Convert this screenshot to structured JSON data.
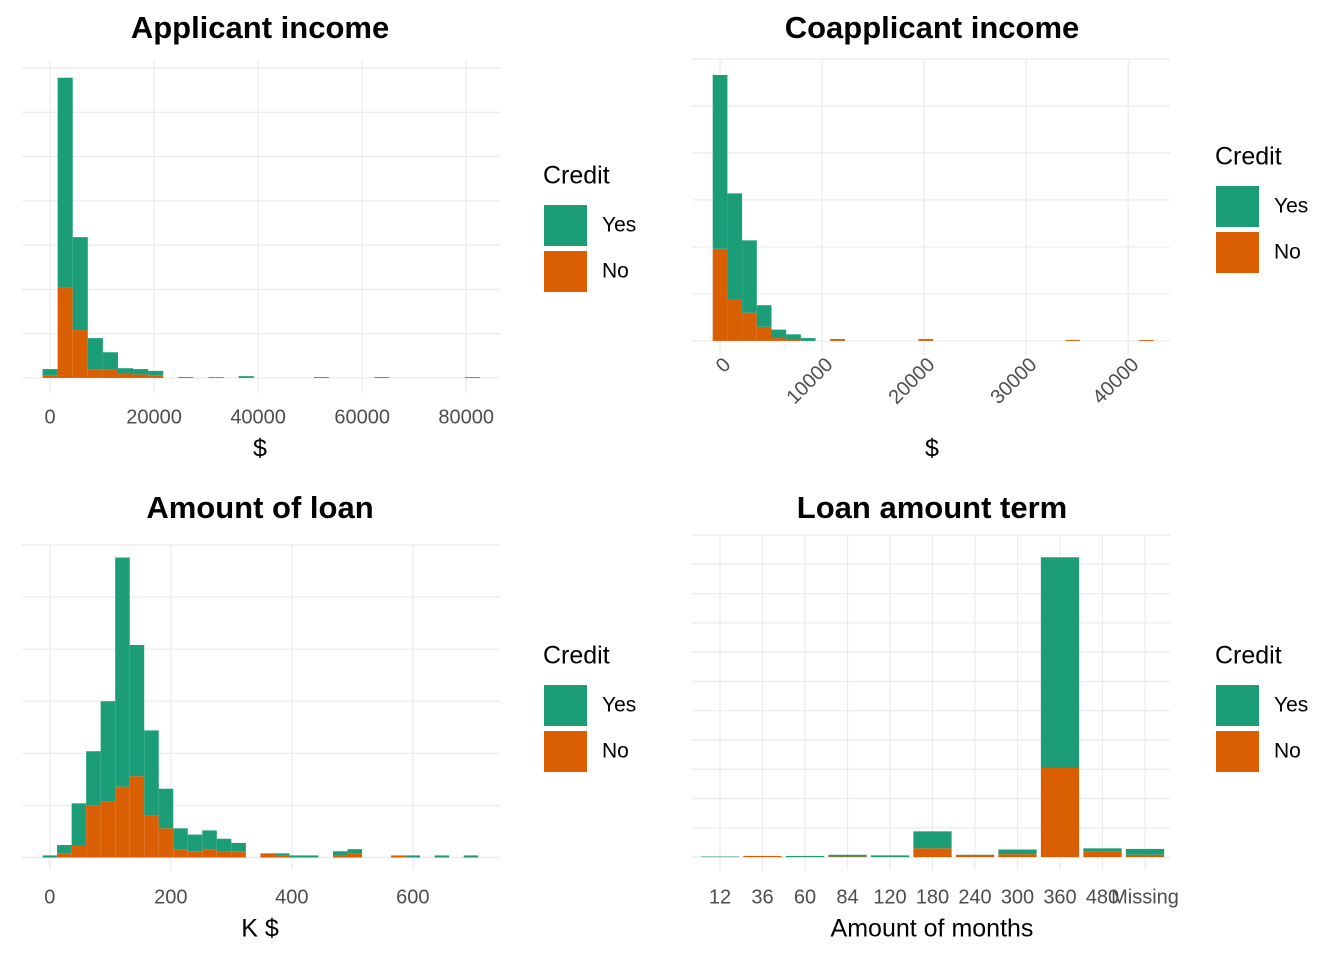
{
  "chart_data": [
    {
      "type": "histogram",
      "title": "Applicant income",
      "x_label": "$",
      "legend_title": "Credit",
      "bins": [
        -1450,
        1450,
        4350,
        7250,
        10150,
        13050,
        15950,
        18850,
        21750,
        24650,
        27550,
        30450,
        33350,
        36250,
        39150,
        42050,
        44950,
        47850,
        50750,
        53650,
        56550,
        59450,
        62350,
        65250,
        68150,
        71050,
        73950,
        76850,
        79750,
        82650
      ],
      "series": [
        {
          "name": "Yes",
          "color": "#1b9e77",
          "values": [
            7,
            237,
            105,
            35,
            19,
            6,
            6,
            5,
            0,
            1,
            0,
            0,
            0,
            2,
            0,
            0,
            0,
            0,
            1,
            0,
            0,
            0,
            1,
            0,
            0,
            0,
            0,
            0,
            0
          ]
        },
        {
          "name": "No",
          "color": "#d95f02",
          "values": [
            3,
            102,
            54,
            10,
            10,
            5,
            4,
            3,
            0,
            0,
            0,
            1,
            0,
            0,
            0,
            0,
            0,
            0,
            0,
            0,
            0,
            0,
            0,
            0,
            0,
            0,
            0,
            0,
            1
          ]
        }
      ],
      "xlim": [
        -5400,
        86500
      ],
      "xticks": [
        0,
        20000,
        40000,
        60000,
        80000
      ],
      "ylim": [
        -17,
        359
      ],
      "yticks": [
        0,
        50,
        100,
        150,
        200,
        250,
        300,
        350
      ],
      "grid": true
    },
    {
      "type": "histogram",
      "title": "Coapplicant income",
      "x_label": "$",
      "legend_title": "Credit",
      "bins": [
        -720,
        720,
        2160,
        3600,
        5040,
        6480,
        7920,
        9360,
        10800,
        12240,
        13680,
        15120,
        16560,
        18000,
        19440,
        20880,
        22320,
        23760,
        25200,
        26640,
        28080,
        29520,
        30960,
        32400,
        33840,
        35280,
        36720,
        38160,
        39600,
        41040,
        42480
      ],
      "series": [
        {
          "name": "Yes",
          "color": "#1b9e77",
          "values": [
            185,
            113,
            77,
            23,
            9,
            6,
            3,
            0,
            0,
            0,
            0,
            0,
            0,
            0,
            1,
            0,
            0,
            0,
            0,
            0,
            0,
            0,
            0,
            0,
            0,
            0,
            0,
            0,
            0,
            0
          ]
        },
        {
          "name": "No",
          "color": "#d95f02",
          "values": [
            98,
            44,
            30,
            15,
            3,
            1,
            0,
            0,
            2,
            0,
            0,
            0,
            0,
            0,
            1,
            0,
            0,
            0,
            0,
            0,
            0,
            0,
            0,
            0,
            1,
            0,
            0,
            0,
            0,
            1
          ]
        }
      ],
      "xlim": [
        -2750,
        44100
      ],
      "xticks": [
        0,
        10000,
        20000,
        30000,
        40000
      ],
      "xtick_rotation": 45,
      "ylim": [
        -15,
        300
      ],
      "yticks": [
        0,
        50,
        100,
        150,
        200,
        250,
        300
      ],
      "grid": true
    },
    {
      "type": "histogram",
      "title": "Amount of loan",
      "x_label": "K $",
      "legend_title": "Credit",
      "bins": [
        -12,
        12,
        36,
        60,
        84,
        108,
        132,
        156,
        180,
        204,
        228,
        252,
        276,
        300,
        324,
        348,
        372,
        396,
        420,
        444,
        468,
        492,
        516,
        540,
        564,
        588,
        612,
        636,
        660,
        684,
        708
      ],
      "series": [
        {
          "name": "Yes",
          "color": "#1b9e77",
          "values": [
            1,
            4,
            20,
            26,
            48,
            110,
            63,
            41,
            19,
            10,
            8,
            9,
            6,
            4,
            0,
            0,
            1,
            1,
            1,
            0,
            2,
            2,
            0,
            0,
            0,
            1,
            0,
            1,
            0,
            1
          ]
        },
        {
          "name": "No",
          "color": "#d95f02",
          "values": [
            0,
            2,
            6,
            25,
            27,
            34,
            39,
            20,
            14,
            4,
            3,
            4,
            3,
            3,
            0,
            2,
            1,
            0,
            0,
            0,
            1,
            2,
            0,
            0,
            1,
            0,
            0,
            0,
            0,
            0
          ]
        }
      ],
      "xlim": [
        -46,
        744
      ],
      "xticks": [
        0,
        200,
        400,
        600
      ],
      "ylim": [
        -6,
        150
      ],
      "yticks": [
        0,
        25,
        50,
        75,
        100,
        125,
        150
      ],
      "grid": true
    },
    {
      "type": "bar",
      "stacked": true,
      "title": "Loan amount term",
      "x_label": "Amount of months",
      "legend_title": "Credit",
      "categories": [
        "12",
        "36",
        "60",
        "84",
        "120",
        "180",
        "240",
        "300",
        "360",
        "480",
        "Missing"
      ],
      "series": [
        {
          "name": "Yes",
          "color": "#1b9e77",
          "values": [
            1,
            0,
            2,
            3,
            3,
            29,
            2,
            8,
            359,
            6,
            10
          ]
        },
        {
          "name": "No",
          "color": "#d95f02",
          "values": [
            0,
            2,
            0,
            1,
            0,
            15,
            2,
            5,
            153,
            9,
            4
          ]
        }
      ],
      "ylim": [
        -22,
        550
      ],
      "yticks": [
        0,
        50,
        100,
        150,
        200,
        250,
        300,
        350,
        400,
        450,
        500,
        550
      ],
      "grid": true
    }
  ]
}
